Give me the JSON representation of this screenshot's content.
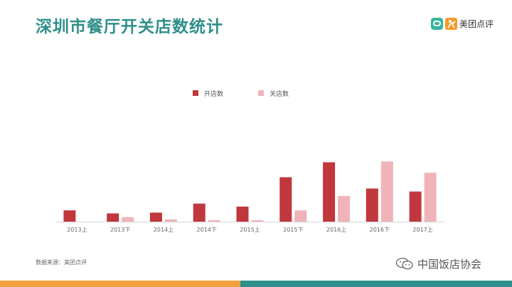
{
  "title": "深圳市餐厅开关店数统计",
  "logo": {
    "text": "美团点评"
  },
  "source": "数据来源：美团点评",
  "watermark": {
    "text": "中国饭店协会"
  },
  "colors": {
    "title": "#2f8f8a",
    "open": "#c0373d",
    "close": "#f0b4b8",
    "footer_left": "#f2a13a",
    "footer_right": "#2f8f8a"
  },
  "chart_data": {
    "type": "bar",
    "categories": [
      "2013上",
      "2013下",
      "2014上",
      "2014下",
      "2015上",
      "2015下",
      "2016上",
      "2016下",
      "2017上"
    ],
    "series": [
      {
        "name": "开店数",
        "values": [
          15,
          11,
          12,
          24,
          20,
          59,
          79,
          44,
          40
        ]
      },
      {
        "name": "关店数",
        "values": [
          0,
          6,
          3,
          2,
          2,
          15,
          34,
          80,
          65
        ]
      }
    ],
    "ylim": [
      0,
      85
    ],
    "grid": false,
    "legend": "top-center"
  }
}
